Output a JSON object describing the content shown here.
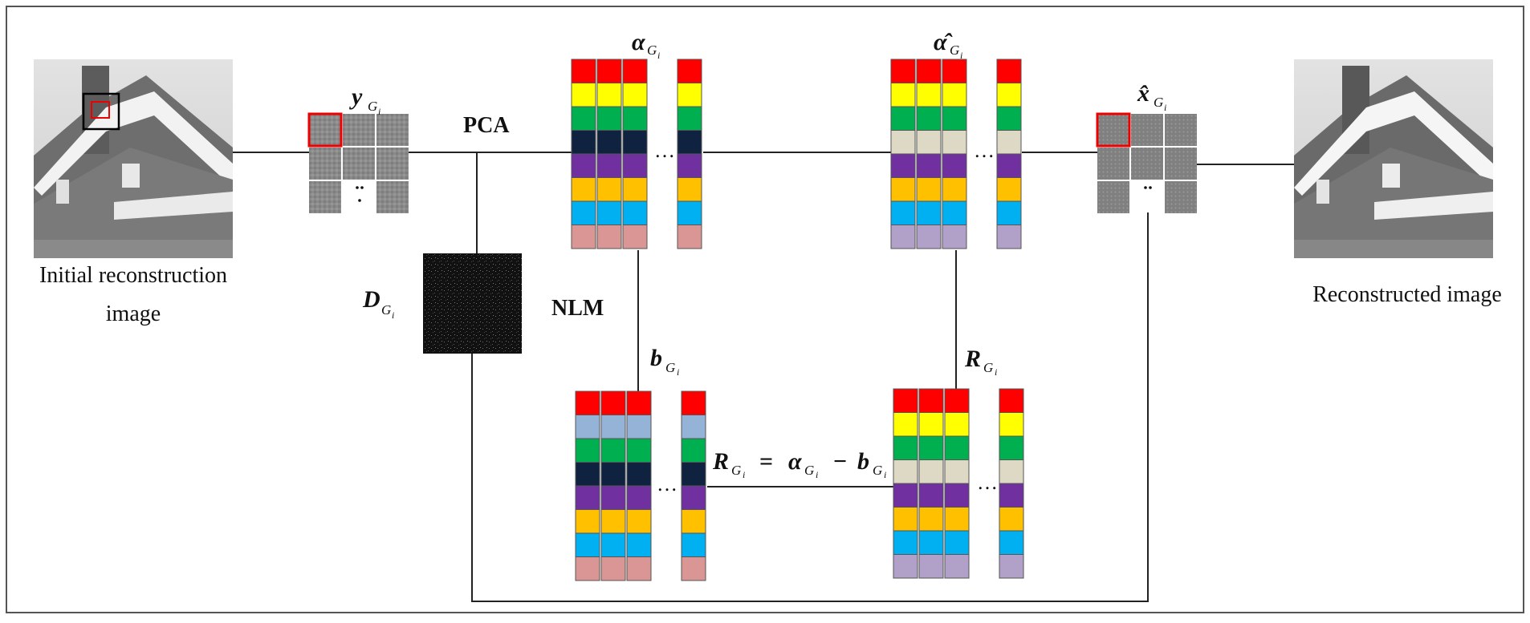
{
  "labels": {
    "initial_line1": "Initial reconstruction",
    "initial_line2": "image",
    "reconstructed": "Reconstructed image",
    "pca": "PCA",
    "nlm": "NLM",
    "ellipsis": "…",
    "vdots": "⋯"
  },
  "symbols": {
    "y": {
      "main": "y",
      "sub": "G",
      "subsub": "i"
    },
    "alpha": {
      "main": "α",
      "sub": "G",
      "subsub": "i"
    },
    "alpha_hat": {
      "main": "α̂",
      "sub": "G",
      "subsub": "i"
    },
    "x_hat": {
      "main": "x̂",
      "sub": "G",
      "subsub": "i"
    },
    "D": {
      "main": "D",
      "sub": "G",
      "subsub": "i"
    },
    "b": {
      "main": "b",
      "sub": "G",
      "subsub": "i"
    },
    "R": {
      "main": "R",
      "sub": "G",
      "subsub": "i"
    }
  },
  "equation": {
    "lhs": "R",
    "eq": "=",
    "a": "α",
    "minus": "−",
    "b": "b",
    "sub": "G",
    "subsub": "i"
  },
  "colors": {
    "red": "#ff0000",
    "yellow": "#ffff00",
    "green": "#00b050",
    "navy": "#0f2341",
    "purple": "#7030a0",
    "orange": "#ffc000",
    "cyan": "#00b0f0",
    "pink": "#da9694",
    "beige": "#ddd9c4",
    "lavender": "#b1a0c7",
    "steel": "#95b3d7"
  },
  "column_palettes": {
    "alpha": [
      "red",
      "yellow",
      "green",
      "navy",
      "purple",
      "orange",
      "cyan",
      "pink"
    ],
    "alpha_hat": [
      "red",
      "yellow",
      "green",
      "beige",
      "purple",
      "orange",
      "cyan",
      "lavender"
    ],
    "b": [
      "red",
      "steel",
      "green",
      "navy",
      "purple",
      "orange",
      "cyan",
      "pink"
    ],
    "R": [
      "red",
      "yellow",
      "green",
      "beige",
      "purple",
      "orange",
      "cyan",
      "lavender"
    ]
  }
}
